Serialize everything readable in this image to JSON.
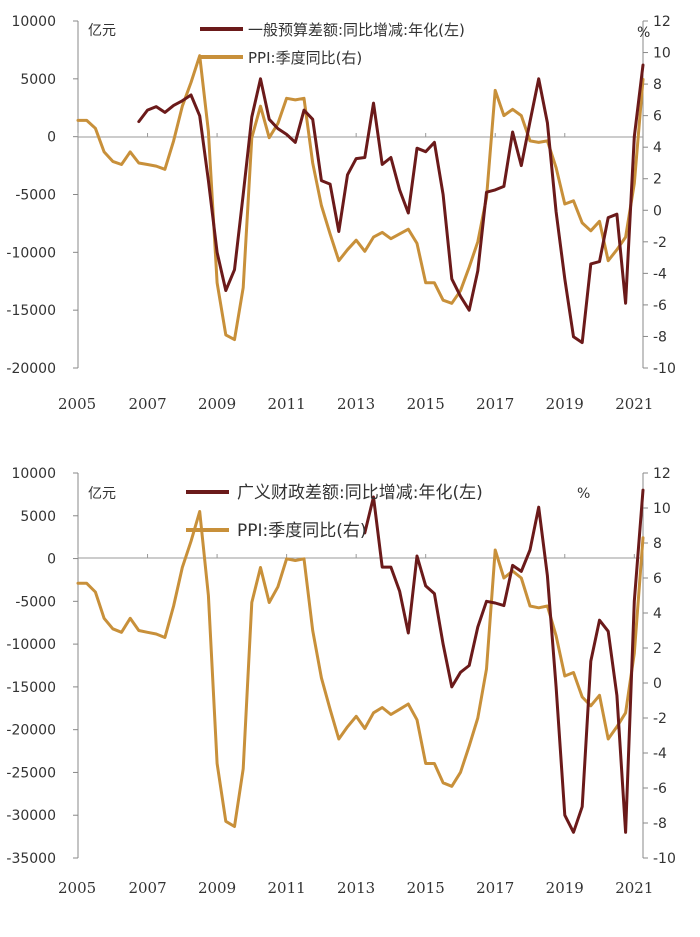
{
  "chart_data": [
    {
      "type": "line",
      "title": "",
      "x_ticks": [
        "2005",
        "2007",
        "2009",
        "2011",
        "2013",
        "2015",
        "2017",
        "2019",
        "2021"
      ],
      "left_axis": {
        "unit": "亿元",
        "ylim": [
          -20000,
          10000
        ],
        "ticks": [
          "10000",
          "5000",
          "0",
          "-5000",
          "-10000",
          "-15000",
          "-20000"
        ]
      },
      "right_axis": {
        "unit": "%",
        "ylim": [
          -10,
          12
        ],
        "ticks": [
          "12",
          "10",
          "8",
          "6",
          "4",
          "2",
          "0",
          "-2",
          "-4",
          "-6",
          "-8",
          "-10"
        ]
      },
      "series": [
        {
          "name": "一般预算差额:同比增减:年化(左)",
          "axis": "left",
          "color": "#6b1a1a",
          "x": [
            2006.75,
            2007.0,
            2007.25,
            2007.5,
            2007.75,
            2008.0,
            2008.25,
            2008.5,
            2008.75,
            2009.0,
            2009.25,
            2009.5,
            2009.75,
            2010.0,
            2010.25,
            2010.5,
            2010.75,
            2011.0,
            2011.25,
            2011.5,
            2011.75,
            2012.0,
            2012.25,
            2012.5,
            2012.75,
            2013.0,
            2013.25,
            2013.5,
            2013.75,
            2014.0,
            2014.25,
            2014.5,
            2014.75,
            2015.0,
            2015.25,
            2015.5,
            2015.75,
            2016.0,
            2016.25,
            2016.5,
            2016.75,
            2017.0,
            2017.25,
            2017.5,
            2017.75,
            2018.0,
            2018.25,
            2018.5,
            2018.75,
            2019.0,
            2019.25,
            2019.5,
            2019.75,
            2020.0,
            2020.25,
            2020.5,
            2020.75,
            2021.0,
            2021.25
          ],
          "values": [
            1300,
            2300,
            2600,
            2100,
            2700,
            3100,
            3600,
            1800,
            -3800,
            -10000,
            -13300,
            -11500,
            -5000,
            1700,
            5000,
            1500,
            700,
            200,
            -500,
            2300,
            1500,
            -3800,
            -4100,
            -8200,
            -3300,
            -1900,
            -1800,
            2900,
            -2400,
            -1800,
            -4600,
            -6600,
            -1000,
            -1300,
            -500,
            -5000,
            -12300,
            -13800,
            -15000,
            -11600,
            -4800,
            -4600,
            -4300,
            400,
            -2500,
            1300,
            5000,
            1200,
            -6500,
            -12300,
            -17300,
            -17800,
            -11000,
            -10800,
            -7000,
            -6700,
            -14400,
            0,
            6200
          ]
        },
        {
          "name": "PPI:季度同比(右)",
          "axis": "right",
          "color": "#c8903a",
          "x": [
            2005.0,
            2005.25,
            2005.5,
            2005.75,
            2006.0,
            2006.25,
            2006.5,
            2006.75,
            2007.0,
            2007.25,
            2007.5,
            2007.75,
            2008.0,
            2008.25,
            2008.5,
            2008.75,
            2009.0,
            2009.25,
            2009.5,
            2009.75,
            2010.0,
            2010.25,
            2010.5,
            2010.75,
            2011.0,
            2011.25,
            2011.5,
            2011.75,
            2012.0,
            2012.25,
            2012.5,
            2012.75,
            2013.0,
            2013.25,
            2013.5,
            2013.75,
            2014.0,
            2014.25,
            2014.5,
            2014.75,
            2015.0,
            2015.25,
            2015.5,
            2015.75,
            2016.0,
            2016.25,
            2016.5,
            2016.75,
            2017.0,
            2017.25,
            2017.5,
            2017.75,
            2018.0,
            2018.25,
            2018.5,
            2018.75,
            2019.0,
            2019.25,
            2019.5,
            2019.75,
            2020.0,
            2020.25,
            2020.5,
            2020.75,
            2021.0,
            2021.25
          ],
          "values": [
            5.7,
            5.7,
            5.2,
            3.7,
            3.1,
            2.9,
            3.7,
            3.0,
            2.9,
            2.8,
            2.6,
            4.4,
            6.6,
            8.1,
            9.8,
            5.0,
            -4.6,
            -7.9,
            -8.2,
            -4.9,
            4.6,
            6.6,
            4.6,
            5.5,
            7.1,
            7.0,
            7.1,
            3.0,
            0.3,
            -1.5,
            -3.2,
            -2.5,
            -1.9,
            -2.6,
            -1.7,
            -1.4,
            -1.8,
            -1.5,
            -1.2,
            -2.1,
            -4.6,
            -4.6,
            -5.7,
            -5.9,
            -5.1,
            -3.6,
            -2.0,
            0.8,
            7.6,
            6.0,
            6.4,
            6.0,
            4.4,
            4.3,
            4.4,
            2.7,
            0.4,
            0.6,
            -0.8,
            -1.3,
            -0.7,
            -3.2,
            -2.5,
            -1.7,
            1.7,
            8.3
          ]
        }
      ]
    },
    {
      "type": "line",
      "title": "",
      "x_ticks": [
        "2005",
        "2007",
        "2009",
        "2011",
        "2013",
        "2015",
        "2017",
        "2019",
        "2021"
      ],
      "left_axis": {
        "unit": "亿元",
        "ylim": [
          -35000,
          10000
        ],
        "ticks": [
          "10000",
          "5000",
          "0",
          "-5000",
          "-10000",
          "-15000",
          "-20000",
          "-25000",
          "-30000",
          "-35000"
        ]
      },
      "right_axis": {
        "unit": "%",
        "ylim": [
          -10,
          12
        ],
        "ticks": [
          "12",
          "10",
          "8",
          "6",
          "4",
          "2",
          "0",
          "-2",
          "-4",
          "-6",
          "-8",
          "-10"
        ]
      },
      "series": [
        {
          "name": "广义财政差额:同比增减:年化(左)",
          "axis": "left",
          "color": "#6b1a1a",
          "x": [
            2013.25,
            2013.5,
            2013.75,
            2014.0,
            2014.25,
            2014.5,
            2014.75,
            2015.0,
            2015.25,
            2015.5,
            2015.75,
            2016.0,
            2016.25,
            2016.5,
            2016.75,
            2017.0,
            2017.25,
            2017.5,
            2017.75,
            2018.0,
            2018.25,
            2018.5,
            2018.75,
            2019.0,
            2019.25,
            2019.5,
            2019.75,
            2020.0,
            2020.25,
            2020.5,
            2020.75,
            2021.0,
            2021.25
          ],
          "values": [
            3000,
            7200,
            -1000,
            -1000,
            -3800,
            -8700,
            300,
            -3200,
            -4100,
            -10000,
            -15000,
            -13300,
            -12500,
            -8000,
            -5000,
            -5200,
            -5500,
            -800,
            -1500,
            1000,
            6000,
            -2000,
            -15000,
            -30000,
            -32000,
            -29000,
            -12000,
            -7200,
            -8500,
            -16000,
            -32000,
            -5000,
            8000
          ]
        },
        {
          "name": "PPI:季度同比(右)",
          "axis": "right",
          "color": "#c8903a",
          "x": [
            2005.0,
            2005.25,
            2005.5,
            2005.75,
            2006.0,
            2006.25,
            2006.5,
            2006.75,
            2007.0,
            2007.25,
            2007.5,
            2007.75,
            2008.0,
            2008.25,
            2008.5,
            2008.75,
            2009.0,
            2009.25,
            2009.5,
            2009.75,
            2010.0,
            2010.25,
            2010.5,
            2010.75,
            2011.0,
            2011.25,
            2011.5,
            2011.75,
            2012.0,
            2012.25,
            2012.5,
            2012.75,
            2013.0,
            2013.25,
            2013.5,
            2013.75,
            2014.0,
            2014.25,
            2014.5,
            2014.75,
            2015.0,
            2015.25,
            2015.5,
            2015.75,
            2016.0,
            2016.25,
            2016.5,
            2016.75,
            2017.0,
            2017.25,
            2017.5,
            2017.75,
            2018.0,
            2018.25,
            2018.5,
            2018.75,
            2019.0,
            2019.25,
            2019.5,
            2019.75,
            2020.0,
            2020.25,
            2020.5,
            2020.75,
            2021.0,
            2021.25
          ],
          "values": [
            5.7,
            5.7,
            5.2,
            3.7,
            3.1,
            2.9,
            3.7,
            3.0,
            2.9,
            2.8,
            2.6,
            4.4,
            6.6,
            8.1,
            9.8,
            5.0,
            -4.6,
            -7.9,
            -8.2,
            -4.9,
            4.6,
            6.6,
            4.6,
            5.5,
            7.1,
            7.0,
            7.1,
            3.0,
            0.3,
            -1.5,
            -3.2,
            -2.5,
            -1.9,
            -2.6,
            -1.7,
            -1.4,
            -1.8,
            -1.5,
            -1.2,
            -2.1,
            -4.6,
            -4.6,
            -5.7,
            -5.9,
            -5.1,
            -3.6,
            -2.0,
            0.8,
            7.6,
            6.0,
            6.4,
            6.0,
            4.4,
            4.3,
            4.4,
            2.7,
            0.4,
            0.6,
            -0.8,
            -1.3,
            -0.7,
            -3.2,
            -2.5,
            -1.7,
            1.7,
            8.3
          ]
        }
      ]
    }
  ]
}
